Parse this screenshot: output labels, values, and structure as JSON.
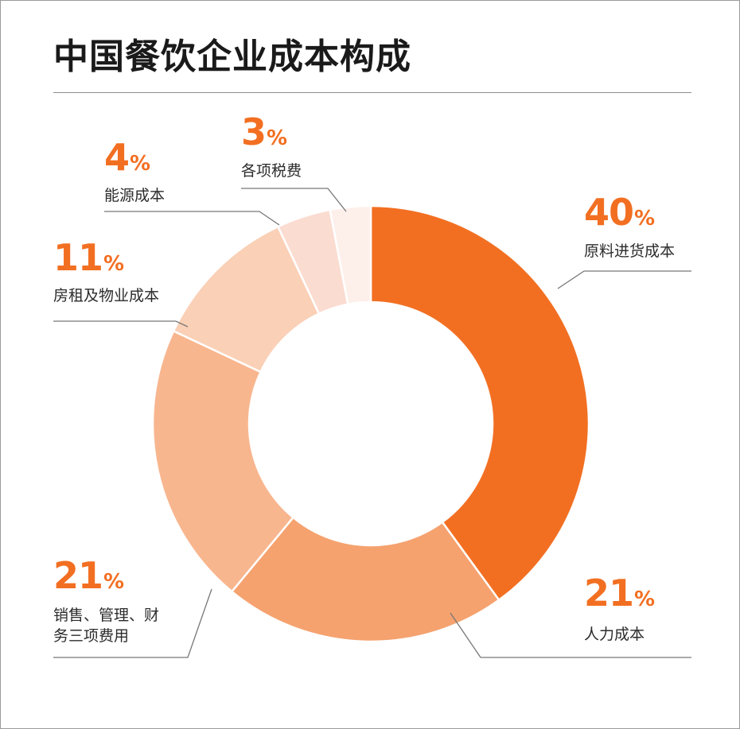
{
  "chart_data": {
    "type": "pie",
    "title": "中国餐饮企业成本构成",
    "categories": [
      "原料进货成本",
      "人力成本",
      "销售、管理、财务三项费用",
      "房租及物业成本",
      "能源成本",
      "各项税费"
    ],
    "values": [
      40,
      21,
      21,
      11,
      4,
      3
    ],
    "unit": "%",
    "colors": [
      "#f26f22",
      "#f5a26f",
      "#f8b68f",
      "#fad0b6",
      "#fbdcd1",
      "#fdefea"
    ]
  }
}
